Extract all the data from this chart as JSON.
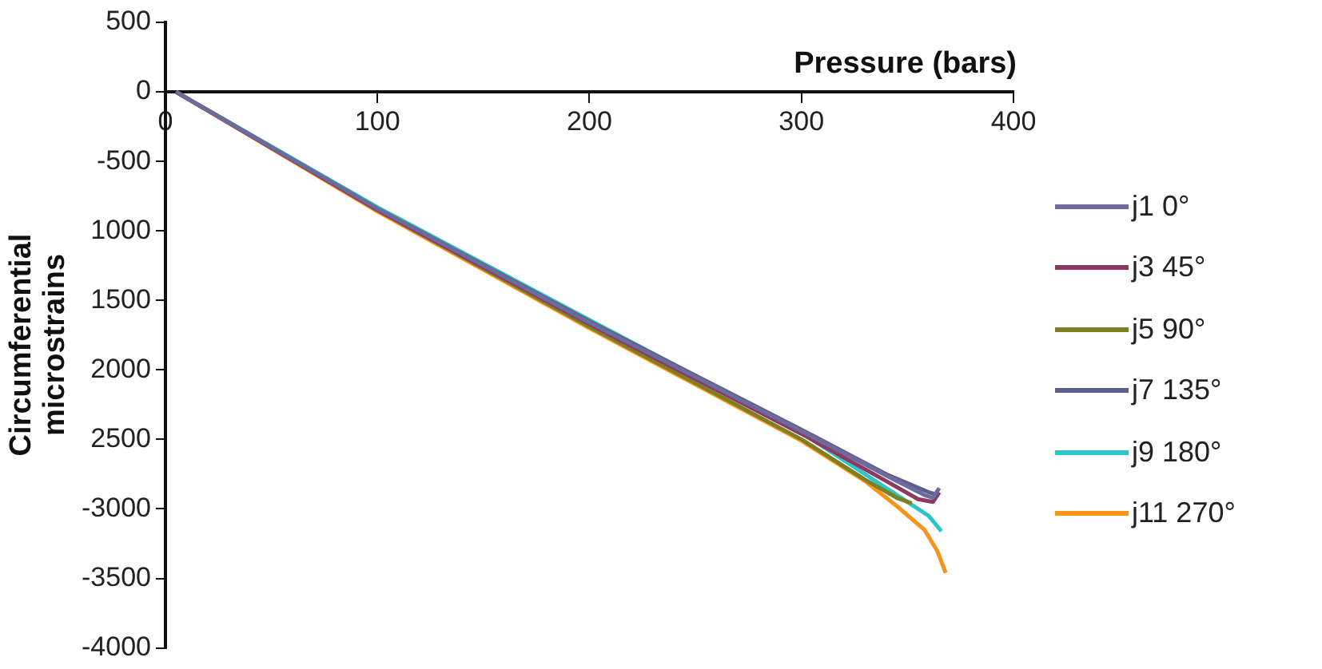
{
  "chart_data": {
    "type": "line",
    "xlabel": "Pressure (bars)",
    "ylabel": "Circumferential microstrains",
    "xlim": [
      0,
      400
    ],
    "xticks": [
      0,
      100,
      200,
      300,
      400
    ],
    "ylim": [
      -4000,
      500
    ],
    "yticks": [
      500,
      0,
      -500,
      {
        "value": -1000,
        "label": "1000"
      },
      {
        "value": -1500,
        "label": "1500"
      },
      {
        "value": -2000,
        "label": "2000"
      },
      {
        "value": -2500,
        "label": "2500"
      },
      -3000,
      -3500,
      -4000
    ],
    "grid": false,
    "legend": "right",
    "marker": "none",
    "line_style": "solid",
    "series": [
      {
        "name": "j1 0°",
        "color": "#6e6a9c",
        "x": [
          5,
          100,
          200,
          300,
          340,
          358,
          362,
          365
        ],
        "values": [
          0,
          -840,
          -1660,
          -2440,
          -2760,
          -2900,
          -2920,
          -2850
        ]
      },
      {
        "name": "j3 45°",
        "color": "#8b3a62",
        "x": [
          5,
          100,
          200,
          300,
          340,
          355,
          362,
          365
        ],
        "values": [
          0,
          -850,
          -1670,
          -2460,
          -2800,
          -2930,
          -2950,
          -2880
        ]
      },
      {
        "name": "j5 90°",
        "color": "#7f7f1f",
        "x": [
          5,
          100,
          200,
          300,
          330,
          345,
          352
        ],
        "values": [
          0,
          -850,
          -1690,
          -2500,
          -2790,
          -2920,
          -2960
        ]
      },
      {
        "name": "j7 135°",
        "color": "#5e5e8f",
        "x": [
          5,
          100,
          200,
          300,
          340,
          360,
          365
        ],
        "values": [
          0,
          -840,
          -1650,
          -2430,
          -2750,
          -2880,
          -2900
        ]
      },
      {
        "name": "j9 180°",
        "color": "#2ec4c8",
        "x": [
          5,
          100,
          200,
          300,
          340,
          360,
          366
        ],
        "values": [
          0,
          -830,
          -1640,
          -2450,
          -2850,
          -3050,
          -3160
        ]
      },
      {
        "name": "j11 270°",
        "color": "#f7941d",
        "x": [
          5,
          100,
          200,
          300,
          330,
          345,
          358,
          364,
          368
        ],
        "values": [
          0,
          -860,
          -1700,
          -2510,
          -2800,
          -2980,
          -3150,
          -3300,
          -3460
        ]
      }
    ]
  }
}
